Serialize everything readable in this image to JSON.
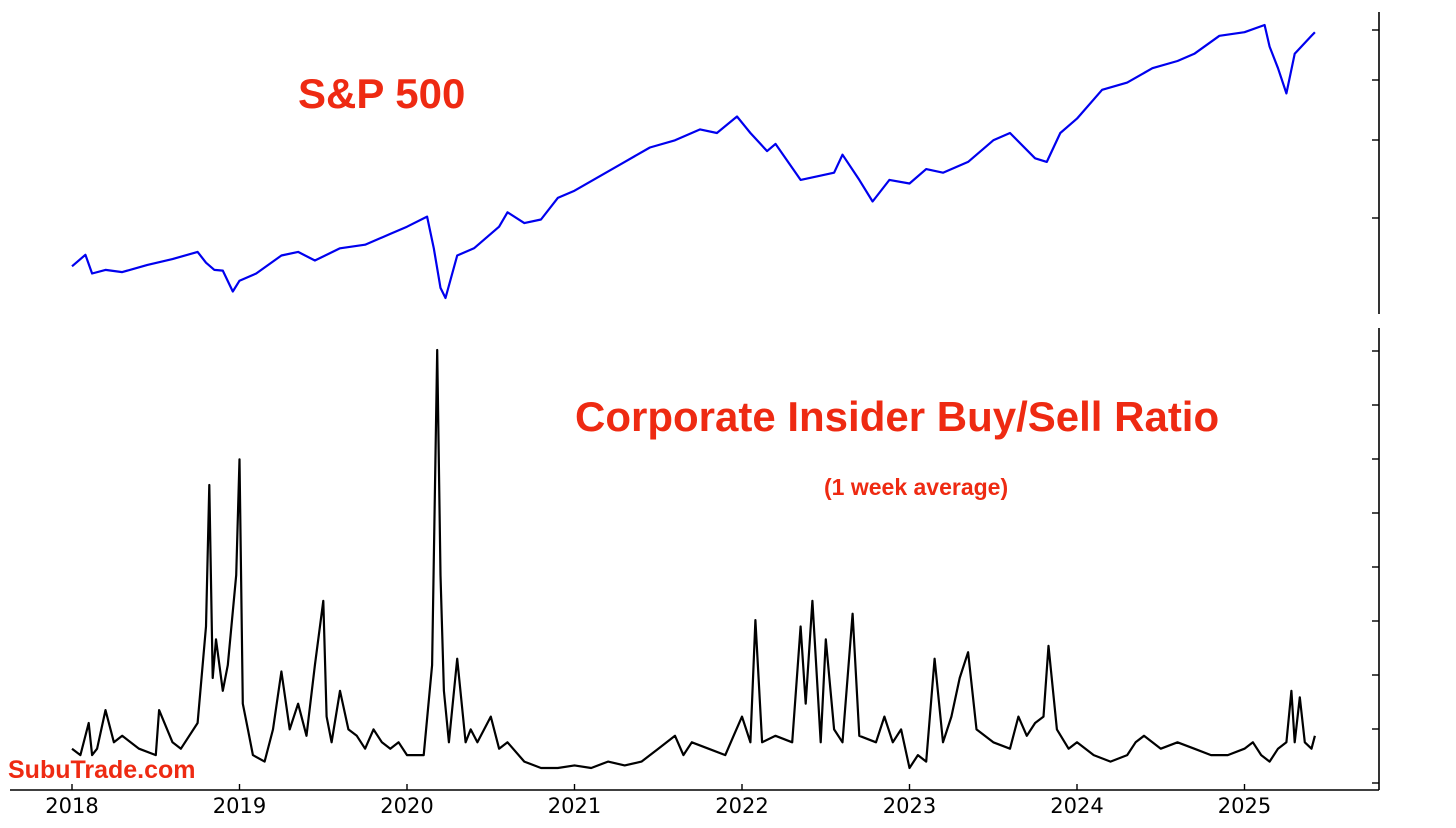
{
  "chart_data": [
    {
      "type": "line",
      "title": "S&P 500",
      "subtitle": "",
      "xlabel": "",
      "ylabel": "",
      "y_tick_labels_shown": false,
      "grid": false,
      "line_color": "#0000ee",
      "series": [
        {
          "x": [
            2018.0,
            2018.08,
            2018.12,
            2018.2,
            2018.3,
            2018.45,
            2018.6,
            2018.75,
            2018.8,
            2018.85,
            2018.9,
            2018.96,
            2019.0,
            2019.1,
            2019.25,
            2019.35,
            2019.45,
            2019.6,
            2019.75,
            2019.9,
            2020.0,
            2020.12,
            2020.16,
            2020.2,
            2020.23,
            2020.3,
            2020.4,
            2020.55,
            2020.6,
            2020.7,
            2020.8,
            2020.9,
            2021.0,
            2021.15,
            2021.3,
            2021.45,
            2021.6,
            2021.75,
            2021.85,
            2021.97,
            2022.05,
            2022.15,
            2022.2,
            2022.35,
            2022.45,
            2022.55,
            2022.6,
            2022.7,
            2022.78,
            2022.88,
            2023.0,
            2023.1,
            2023.2,
            2023.35,
            2023.5,
            2023.6,
            2023.75,
            2023.82,
            2023.9,
            2024.0,
            2024.15,
            2024.3,
            2024.45,
            2024.6,
            2024.7,
            2024.85,
            2025.0,
            2025.12,
            2025.15,
            2025.2,
            2025.25,
            2025.3,
            2025.4,
            2025.42
          ],
          "y": [
            2700,
            2860,
            2600,
            2650,
            2620,
            2720,
            2800,
            2900,
            2750,
            2650,
            2640,
            2350,
            2500,
            2600,
            2850,
            2900,
            2780,
            2950,
            3000,
            3150,
            3250,
            3390,
            2950,
            2400,
            2260,
            2850,
            2950,
            3250,
            3450,
            3300,
            3350,
            3650,
            3750,
            3950,
            4150,
            4350,
            4450,
            4600,
            4550,
            4780,
            4550,
            4300,
            4400,
            3900,
            3950,
            4000,
            4250,
            3900,
            3600,
            3900,
            3850,
            4050,
            4000,
            4150,
            4450,
            4550,
            4200,
            4150,
            4550,
            4750,
            5150,
            5250,
            5450,
            5550,
            5650,
            5900,
            5950,
            6050,
            5750,
            5450,
            5100,
            5650,
            5900,
            5950
          ]
        }
      ]
    },
    {
      "type": "line",
      "title": "Corporate Insider Buy/Sell Ratio",
      "subtitle": "(1 week average)",
      "xlabel": "",
      "ylabel": "",
      "y_tick_labels_shown": false,
      "grid": false,
      "line_color": "#000000",
      "xlim": [
        2018,
        2025.9
      ],
      "x_tick_labels": [
        "2018",
        "2019",
        "2020",
        "2021",
        "2022",
        "2023",
        "2024",
        "2025"
      ],
      "series": [
        {
          "x": [
            2018.0,
            2018.05,
            2018.1,
            2018.12,
            2018.15,
            2018.2,
            2018.25,
            2018.3,
            2018.4,
            2018.5,
            2018.52,
            2018.6,
            2018.65,
            2018.75,
            2018.8,
            2018.82,
            2018.84,
            2018.86,
            2018.9,
            2018.93,
            2018.98,
            2019.0,
            2019.02,
            2019.05,
            2019.08,
            2019.15,
            2019.2,
            2019.25,
            2019.3,
            2019.35,
            2019.4,
            2019.45,
            2019.5,
            2019.52,
            2019.55,
            2019.6,
            2019.65,
            2019.7,
            2019.75,
            2019.8,
            2019.85,
            2019.9,
            2019.95,
            2020.0,
            2020.1,
            2020.15,
            2020.18,
            2020.2,
            2020.22,
            2020.25,
            2020.3,
            2020.35,
            2020.38,
            2020.42,
            2020.5,
            2020.55,
            2020.6,
            2020.7,
            2020.8,
            2020.9,
            2021.0,
            2021.1,
            2021.2,
            2021.3,
            2021.4,
            2021.5,
            2021.6,
            2021.65,
            2021.7,
            2021.8,
            2021.9,
            2021.95,
            2022.0,
            2022.05,
            2022.08,
            2022.12,
            2022.2,
            2022.3,
            2022.35,
            2022.38,
            2022.42,
            2022.47,
            2022.5,
            2022.55,
            2022.6,
            2022.66,
            2022.7,
            2022.8,
            2022.85,
            2022.9,
            2022.95,
            2023.0,
            2023.05,
            2023.1,
            2023.15,
            2023.2,
            2023.25,
            2023.3,
            2023.35,
            2023.4,
            2023.5,
            2023.6,
            2023.65,
            2023.7,
            2023.75,
            2023.8,
            2023.83,
            2023.88,
            2023.95,
            2024.0,
            2024.1,
            2024.2,
            2024.3,
            2024.35,
            2024.4,
            2024.5,
            2024.6,
            2024.7,
            2024.8,
            2024.9,
            2025.0,
            2025.05,
            2025.1,
            2025.15,
            2025.2,
            2025.25,
            2025.28,
            2025.3,
            2025.33,
            2025.36,
            2025.4,
            2025.42
          ],
          "y": [
            0.25,
            0.2,
            0.45,
            0.2,
            0.25,
            0.55,
            0.3,
            0.35,
            0.25,
            0.2,
            0.55,
            0.3,
            0.25,
            0.45,
            1.2,
            2.3,
            0.8,
            1.1,
            0.7,
            0.9,
            1.6,
            2.5,
            0.6,
            0.4,
            0.2,
            0.15,
            0.4,
            0.85,
            0.4,
            0.6,
            0.35,
            0.9,
            1.4,
            0.5,
            0.3,
            0.7,
            0.4,
            0.35,
            0.25,
            0.4,
            0.3,
            0.25,
            0.3,
            0.2,
            0.2,
            0.9,
            3.35,
            1.6,
            0.7,
            0.3,
            0.95,
            0.3,
            0.4,
            0.3,
            0.5,
            0.25,
            0.3,
            0.15,
            0.1,
            0.1,
            0.12,
            0.1,
            0.15,
            0.12,
            0.15,
            0.25,
            0.35,
            0.2,
            0.3,
            0.25,
            0.2,
            0.35,
            0.5,
            0.3,
            1.25,
            0.3,
            0.35,
            0.3,
            1.2,
            0.6,
            1.4,
            0.3,
            1.1,
            0.4,
            0.3,
            1.3,
            0.35,
            0.3,
            0.5,
            0.3,
            0.4,
            0.1,
            0.2,
            0.15,
            0.95,
            0.3,
            0.5,
            0.8,
            1.0,
            0.4,
            0.3,
            0.25,
            0.5,
            0.35,
            0.45,
            0.5,
            1.05,
            0.4,
            0.25,
            0.3,
            0.2,
            0.15,
            0.2,
            0.3,
            0.35,
            0.25,
            0.3,
            0.25,
            0.2,
            0.2,
            0.25,
            0.3,
            0.2,
            0.15,
            0.25,
            0.3,
            0.7,
            0.3,
            0.65,
            0.3,
            0.25,
            0.35
          ]
        }
      ]
    }
  ],
  "labels": {
    "sp500_title": "S&P 500",
    "ratio_title": "Corporate Insider Buy/Sell Ratio",
    "ratio_subtitle": "(1 week average)",
    "watermark": "SubuTrade.com"
  }
}
